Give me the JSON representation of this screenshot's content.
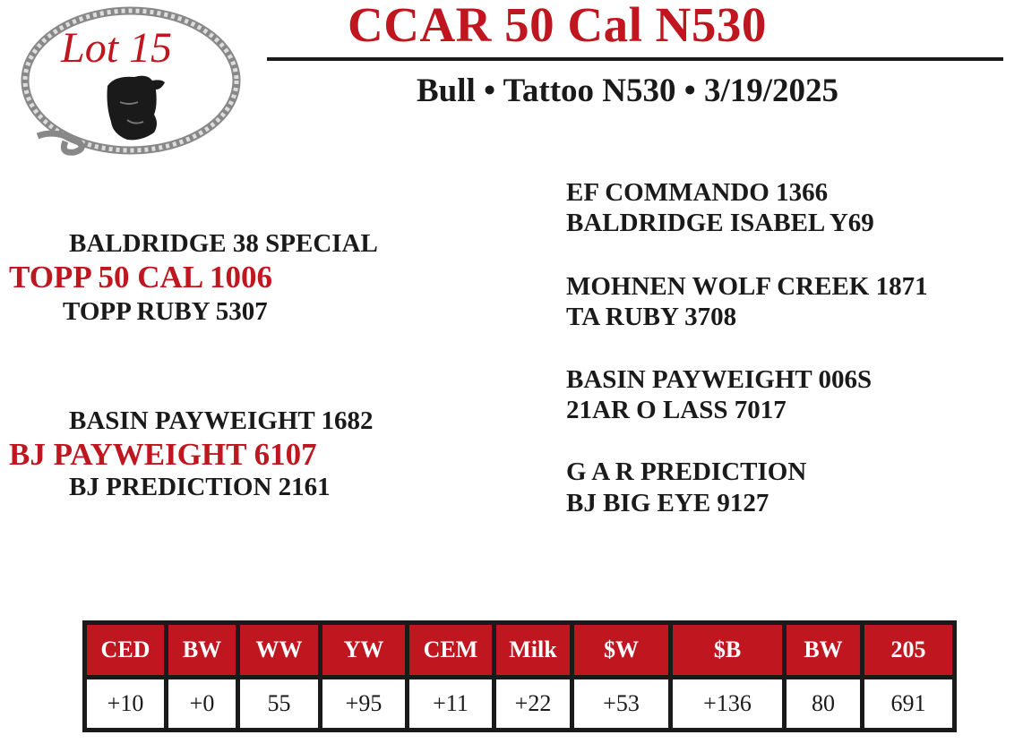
{
  "logo": {
    "text": "Lot 15",
    "image": "bull-head-in-rope-oval",
    "accent": "#c0161f"
  },
  "header": {
    "title": "CCAR 50 Cal N530",
    "subtitle": "Bull • Tattoo N530 • 3/19/2025"
  },
  "pedigree": {
    "sire": {
      "name": "TOPP 50 CAL 1006",
      "sire": "BALDRIDGE 38 SPECIAL",
      "dam": "TOPP RUBY 5307",
      "sire_sire": "EF COMMANDO 1366",
      "sire_dam": "BALDRIDGE ISABEL Y69",
      "dam_sire": "MOHNEN WOLF CREEK 1871",
      "dam_dam": "TA RUBY 3708"
    },
    "dam": {
      "name": "BJ PAYWEIGHT 6107",
      "sire": "BASIN PAYWEIGHT 1682",
      "dam": "BJ PREDICTION 2161",
      "sire_sire": "BASIN PAYWEIGHT 006S",
      "sire_dam": "21AR O LASS 7017",
      "dam_sire": "G A R PREDICTION",
      "dam_dam": "BJ BIG EYE 9127"
    }
  },
  "epd": {
    "headers": [
      "CED",
      "BW",
      "WW",
      "YW",
      "CEM",
      "Milk",
      "$W",
      "$B",
      "BW",
      "205"
    ],
    "values": [
      "+10",
      "+0",
      "55",
      "+95",
      "+11",
      "+22",
      "+53",
      "+136",
      "80",
      "691"
    ],
    "header_color": "#c0161f"
  }
}
